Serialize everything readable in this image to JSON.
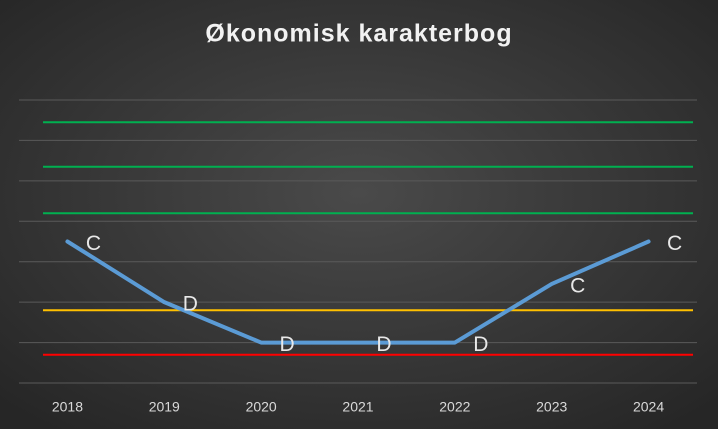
{
  "chart_data": {
    "type": "line",
    "title": "Økonomisk karakterbog",
    "categories": [
      "2018",
      "2019",
      "2020",
      "2021",
      "2022",
      "2023",
      "2024"
    ],
    "values": [
      3.5,
      2,
      1,
      1,
      1,
      2.45,
      3.5
    ],
    "value_labels": [
      "C",
      "D",
      "D",
      "D",
      "D",
      "C",
      "C"
    ],
    "color": "#5b9bd5",
    "ylim": [
      0,
      7
    ],
    "yticks": [
      0,
      1,
      2,
      3,
      4,
      5,
      6,
      7
    ],
    "grid": true,
    "reference_lines": [
      {
        "value": 6.45,
        "color": "#00b050"
      },
      {
        "value": 5.35,
        "color": "#00b050"
      },
      {
        "value": 4.2,
        "color": "#00b050"
      },
      {
        "value": 1.8,
        "color": "#ffc000"
      },
      {
        "value": 0.7,
        "color": "#ff0000"
      }
    ]
  }
}
